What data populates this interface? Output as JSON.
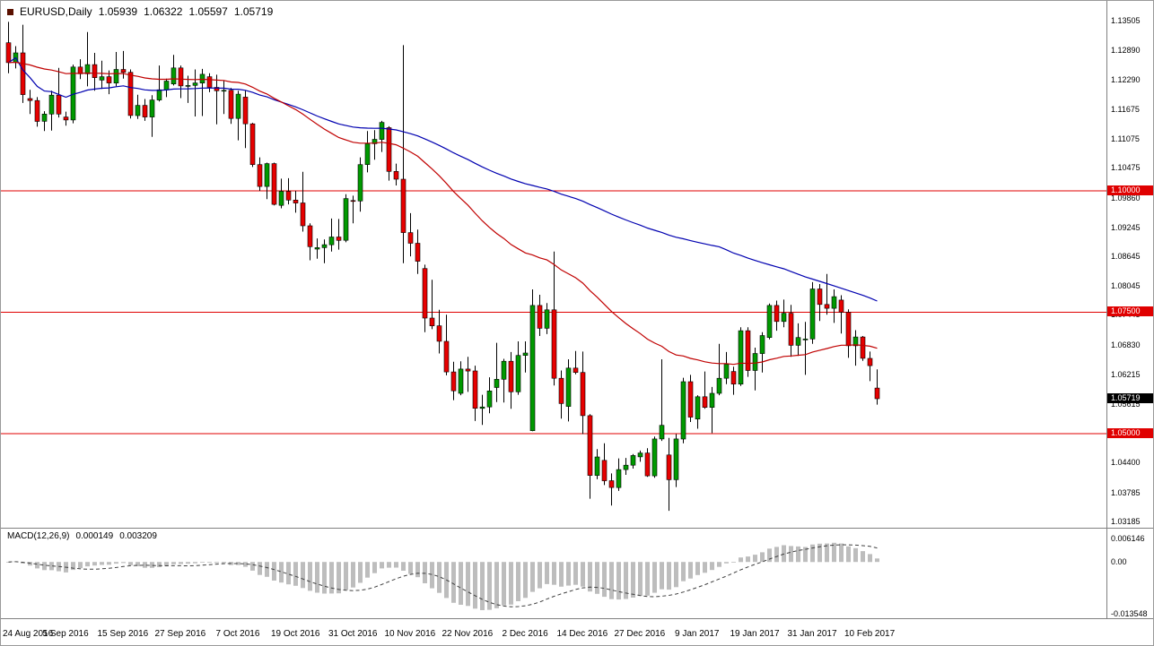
{
  "header": {
    "symbol": "EURUSD,Daily",
    "open": "1.05939",
    "high": "1.06322",
    "low": "1.05597",
    "close": "1.05719"
  },
  "macd_panel": {
    "label": "MACD(12,26,9)",
    "main_value": "0.000149",
    "signal_value": "0.003209"
  },
  "chart_data": {
    "type": "candlestick",
    "symbol": "EURUSD",
    "timeframe": "Daily",
    "price_range_shown": [
      1.03062,
      1.13911
    ],
    "style": {
      "bull_color": "#009900",
      "bear_color": "#e60000",
      "wick_color": "#000000",
      "hline_color": "#e00000",
      "macd_bar_color": "#bdbdbd",
      "macd_signal_color": "#404040",
      "bid_tag_bg": "#000000",
      "level_tag_bg": "#e00000"
    },
    "y_ticks": [
      "1.13505",
      "1.12890",
      "1.12290",
      "1.11675",
      "1.11075",
      "1.10475",
      "1.09860",
      "1.09245",
      "1.08645",
      "1.08045",
      "1.07445",
      "1.06830",
      "1.06215",
      "1.05615",
      "1.05015",
      "1.04400",
      "1.03785",
      "1.03185"
    ],
    "horizontal_lines": [
      {
        "price": "1.10000"
      },
      {
        "price": "1.07500"
      },
      {
        "price": "1.05000"
      }
    ],
    "bid_tag": "1.05719",
    "x_ticks": [
      {
        "i": 0,
        "label": "24 Aug 2016"
      },
      {
        "i": 8,
        "label": "5 Sep 2016"
      },
      {
        "i": 16,
        "label": "15 Sep 2016"
      },
      {
        "i": 24,
        "label": "27 Sep 2016"
      },
      {
        "i": 32,
        "label": "7 Oct 2016"
      },
      {
        "i": 40,
        "label": "19 Oct 2016"
      },
      {
        "i": 48,
        "label": "31 Oct 2016"
      },
      {
        "i": 56,
        "label": "10 Nov 2016"
      },
      {
        "i": 64,
        "label": "22 Nov 2016"
      },
      {
        "i": 72,
        "label": "2 Dec 2016"
      },
      {
        "i": 80,
        "label": "14 Dec 2016"
      },
      {
        "i": 88,
        "label": "27 Dec 2016"
      },
      {
        "i": 96,
        "label": "9 Jan 2017"
      },
      {
        "i": 104,
        "label": "19 Jan 2017"
      },
      {
        "i": 112,
        "label": "31 Jan 2017"
      },
      {
        "i": 120,
        "label": "10 Feb 2017"
      }
    ],
    "moving_averages": [
      {
        "type": "sma",
        "period": 100,
        "color": "#0000b0"
      },
      {
        "type": "ema",
        "period": 50,
        "color": "#c00000"
      }
    ],
    "macd": {
      "label": "MACD(12,26,9)",
      "fast": 12,
      "slow": 26,
      "signal": 9,
      "current_main": 0.000149,
      "current_signal": 0.003209,
      "y_ticks": [
        "0.006146",
        "0.00",
        "-0.013548"
      ],
      "range_shown": [
        -0.01472,
        0.00873
      ]
    },
    "candles_ohlc": [
      [
        1.1305,
        1.1348,
        1.1242,
        1.1264
      ],
      [
        1.1264,
        1.1298,
        1.1252,
        1.1284
      ],
      [
        1.1284,
        1.1342,
        1.1181,
        1.1198
      ],
      [
        1.119,
        1.1208,
        1.1158,
        1.1186
      ],
      [
        1.1186,
        1.1193,
        1.1132,
        1.1143
      ],
      [
        1.1143,
        1.1164,
        1.1123,
        1.1158
      ],
      [
        1.1158,
        1.1206,
        1.1124,
        1.1197
      ],
      [
        1.1197,
        1.1253,
        1.1151,
        1.1158
      ],
      [
        1.1152,
        1.1163,
        1.1134,
        1.1146
      ],
      [
        1.1146,
        1.126,
        1.1139,
        1.1255
      ],
      [
        1.1255,
        1.1271,
        1.123,
        1.1241
      ],
      [
        1.1241,
        1.1327,
        1.1215,
        1.126
      ],
      [
        1.126,
        1.1284,
        1.1206,
        1.1233
      ],
      [
        1.1228,
        1.1268,
        1.121,
        1.1235
      ],
      [
        1.1235,
        1.1248,
        1.1199,
        1.1222
      ],
      [
        1.1222,
        1.1286,
        1.1215,
        1.125
      ],
      [
        1.125,
        1.1288,
        1.1231,
        1.1244
      ],
      [
        1.1244,
        1.125,
        1.1149,
        1.1155
      ],
      [
        1.1155,
        1.1198,
        1.1148,
        1.1176
      ],
      [
        1.1176,
        1.1189,
        1.1144,
        1.1152
      ],
      [
        1.1152,
        1.1197,
        1.1111,
        1.1187
      ],
      [
        1.1187,
        1.1258,
        1.1184,
        1.1208
      ],
      [
        1.1208,
        1.1231,
        1.1193,
        1.1226
      ],
      [
        1.122,
        1.128,
        1.1217,
        1.1253
      ],
      [
        1.1253,
        1.1258,
        1.1191,
        1.1216
      ],
      [
        1.1216,
        1.1237,
        1.1181,
        1.1217
      ],
      [
        1.1217,
        1.125,
        1.1153,
        1.1222
      ],
      [
        1.1222,
        1.1251,
        1.1154,
        1.124
      ],
      [
        1.1235,
        1.1242,
        1.1203,
        1.1213
      ],
      [
        1.1213,
        1.1239,
        1.1137,
        1.1206
      ],
      [
        1.1206,
        1.1227,
        1.1158,
        1.1207
      ],
      [
        1.1207,
        1.1212,
        1.1138,
        1.1149
      ],
      [
        1.1149,
        1.1206,
        1.1104,
        1.1199
      ],
      [
        1.1193,
        1.1206,
        1.1088,
        1.1138
      ],
      [
        1.1138,
        1.114,
        1.1049,
        1.1054
      ],
      [
        1.1054,
        1.1069,
        1.1,
        1.1009
      ],
      [
        1.1009,
        1.1058,
        1.0983,
        1.1056
      ],
      [
        1.1056,
        1.1058,
        1.097,
        1.0972
      ],
      [
        1.097,
        1.1025,
        1.0964,
        1.0999
      ],
      [
        1.0999,
        1.1026,
        1.0972,
        1.0981
      ],
      [
        1.0981,
        1.1,
        1.0955,
        1.0975
      ],
      [
        1.0975,
        1.1039,
        1.0916,
        1.0928
      ],
      [
        1.0928,
        1.0933,
        1.0857,
        1.0885
      ],
      [
        1.088,
        1.0902,
        1.086,
        1.0883
      ],
      [
        1.0883,
        1.09,
        1.0851,
        1.0889
      ],
      [
        1.0889,
        1.0943,
        1.0875,
        1.0905
      ],
      [
        1.0905,
        1.0942,
        1.0879,
        1.0898
      ],
      [
        1.0898,
        1.0993,
        1.0894,
        1.0984
      ],
      [
        1.098,
        1.099,
        1.0933,
        1.0979
      ],
      [
        1.0979,
        1.1069,
        1.0957,
        1.1054
      ],
      [
        1.1054,
        1.1123,
        1.1038,
        1.1097
      ],
      [
        1.1097,
        1.1125,
        1.1064,
        1.1106
      ],
      [
        1.1106,
        1.1144,
        1.108,
        1.1141
      ],
      [
        1.113,
        1.1133,
        1.1021,
        1.104
      ],
      [
        1.104,
        1.1056,
        1.1011,
        1.1024
      ],
      [
        1.1024,
        1.13,
        1.0851,
        1.0914
      ],
      [
        1.0914,
        1.0954,
        1.0865,
        1.0892
      ],
      [
        1.0892,
        1.092,
        1.0829,
        1.0855
      ],
      [
        1.084,
        1.0848,
        1.0709,
        1.0738
      ],
      [
        1.0738,
        1.0817,
        1.0715,
        1.0722
      ],
      [
        1.0722,
        1.0755,
        1.0665,
        1.069
      ],
      [
        1.069,
        1.0745,
        1.062,
        1.0627
      ],
      [
        1.0627,
        1.0648,
        1.0569,
        1.0588
      ],
      [
        1.0583,
        1.0649,
        1.0579,
        1.0633
      ],
      [
        1.0633,
        1.0658,
        1.0586,
        1.0629
      ],
      [
        1.0629,
        1.064,
        1.0526,
        1.0552
      ],
      [
        1.0552,
        1.058,
        1.0518,
        1.0555
      ],
      [
        1.0555,
        1.0616,
        1.0542,
        1.0588
      ],
      [
        1.0595,
        1.0687,
        1.0565,
        1.0612
      ],
      [
        1.0612,
        1.0654,
        1.0564,
        1.0649
      ],
      [
        1.0649,
        1.0668,
        1.0551,
        1.0586
      ],
      [
        1.0586,
        1.069,
        1.058,
        1.0661
      ],
      [
        1.0661,
        1.069,
        1.0626,
        1.0666
      ],
      [
        1.0506,
        1.0797,
        1.0505,
        1.0764
      ],
      [
        1.0764,
        1.0786,
        1.0701,
        1.0717
      ],
      [
        1.0717,
        1.0769,
        1.0705,
        1.0755
      ],
      [
        1.0755,
        1.0875,
        1.0599,
        1.0614
      ],
      [
        1.0614,
        1.063,
        1.0531,
        1.0562
      ],
      [
        1.0556,
        1.0653,
        1.0525,
        1.0635
      ],
      [
        1.0635,
        1.067,
        1.0622,
        1.0626
      ],
      [
        1.0626,
        1.0669,
        1.0499,
        1.0537
      ],
      [
        1.0537,
        1.054,
        1.0366,
        1.0414
      ],
      [
        1.0414,
        1.0468,
        1.0406,
        1.0452
      ],
      [
        1.0445,
        1.048,
        1.0394,
        1.0403
      ],
      [
        1.0403,
        1.0418,
        1.0352,
        1.0389
      ],
      [
        1.0389,
        1.0449,
        1.0382,
        1.0426
      ],
      [
        1.0426,
        1.045,
        1.0415,
        1.0435
      ],
      [
        1.0435,
        1.0458,
        1.0428,
        1.0455
      ],
      [
        1.0452,
        1.0465,
        1.0442,
        1.046
      ],
      [
        1.046,
        1.047,
        1.0411,
        1.0413
      ],
      [
        1.0413,
        1.0494,
        1.0409,
        1.0489
      ],
      [
        1.0489,
        1.0653,
        1.0485,
        1.0517
      ],
      [
        1.0456,
        1.0491,
        1.0341,
        1.0405
      ],
      [
        1.0405,
        1.0499,
        1.039,
        1.0489
      ],
      [
        1.0489,
        1.0615,
        1.048,
        1.0607
      ],
      [
        1.0607,
        1.0621,
        1.0524,
        1.0534
      ],
      [
        1.053,
        1.0579,
        1.051,
        1.0576
      ],
      [
        1.0576,
        1.0628,
        1.0551,
        1.0554
      ],
      [
        1.0554,
        1.0596,
        1.0501,
        1.0583
      ],
      [
        1.0583,
        1.0685,
        1.0579,
        1.0614
      ],
      [
        1.0614,
        1.0668,
        1.0602,
        1.0643
      ],
      [
        1.0628,
        1.0638,
        1.058,
        1.0602
      ],
      [
        1.0602,
        1.0719,
        1.0598,
        1.0712
      ],
      [
        1.0712,
        1.0719,
        1.0617,
        1.063
      ],
      [
        1.063,
        1.0677,
        1.0589,
        1.0665
      ],
      [
        1.0665,
        1.0709,
        1.0626,
        1.0702
      ],
      [
        1.0698,
        1.0768,
        1.0694,
        1.0764
      ],
      [
        1.0764,
        1.0774,
        1.0712,
        1.0731
      ],
      [
        1.0731,
        1.0776,
        1.0719,
        1.0748
      ],
      [
        1.0748,
        1.0765,
        1.0658,
        1.0682
      ],
      [
        1.0682,
        1.0727,
        1.066,
        1.0698
      ],
      [
        1.0693,
        1.073,
        1.0621,
        1.0695
      ],
      [
        1.0695,
        1.0812,
        1.0685,
        1.0798
      ],
      [
        1.0798,
        1.0808,
        1.0732,
        1.0766
      ],
      [
        1.0766,
        1.0829,
        1.0745,
        1.0758
      ],
      [
        1.0758,
        1.0797,
        1.0728,
        1.0782
      ],
      [
        1.0775,
        1.0785,
        1.0706,
        1.075
      ],
      [
        1.075,
        1.0756,
        1.0656,
        1.0681
      ],
      [
        1.0681,
        1.0713,
        1.064,
        1.0699
      ],
      [
        1.0699,
        1.0701,
        1.065,
        1.0655
      ],
      [
        1.0655,
        1.0669,
        1.0608,
        1.064
      ],
      [
        1.05939,
        1.06322,
        1.05597,
        1.05719
      ]
    ]
  }
}
